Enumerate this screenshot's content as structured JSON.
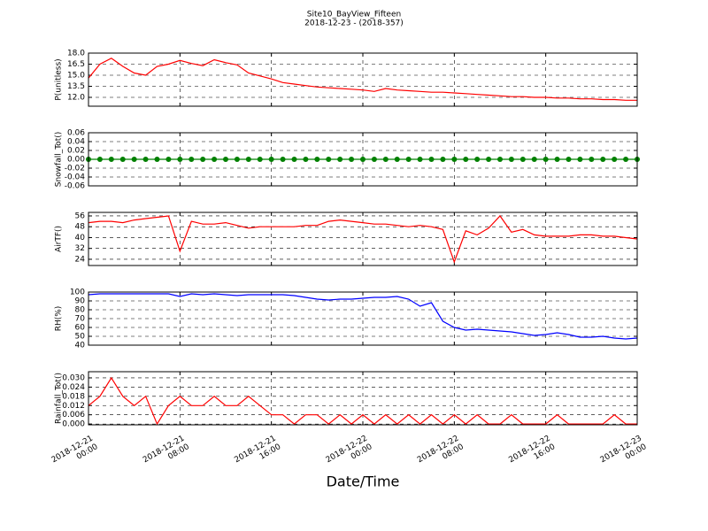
{
  "title": "Site10_BayView_Fifteen",
  "subtitle": "2018-12-23 - (2018-357)",
  "xlabel": "Date/Time",
  "chart_data": [
    {
      "type": "line",
      "ylabel": "P(unitless)",
      "ylim": [
        10.8,
        18
      ],
      "yticks": [
        {
          "value": 12,
          "label": "12.0"
        },
        13.5,
        {
          "value": 15,
          "label": "15.0"
        },
        16.5,
        {
          "value": 18,
          "label": "18.0"
        }
      ],
      "grid": true,
      "x": [
        "2018-12-21 00:00",
        "2018-12-21 01:00",
        "2018-12-21 02:00",
        "2018-12-21 03:00",
        "2018-12-21 04:00",
        "2018-12-21 05:00",
        "2018-12-21 06:00",
        "2018-12-21 07:00",
        "2018-12-21 08:00",
        "2018-12-21 09:00",
        "2018-12-21 10:00",
        "2018-12-21 11:00",
        "2018-12-21 12:00",
        "2018-12-21 13:00",
        "2018-12-21 14:00",
        "2018-12-21 15:00",
        "2018-12-21 16:00",
        "2018-12-21 17:00",
        "2018-12-21 18:00",
        "2018-12-21 19:00",
        "2018-12-21 20:00",
        "2018-12-21 21:00",
        "2018-12-21 22:00",
        "2018-12-21 23:00",
        "2018-12-22 00:00",
        "2018-12-22 01:00",
        "2018-12-22 02:00",
        "2018-12-22 03:00",
        "2018-12-22 04:00",
        "2018-12-22 05:00",
        "2018-12-22 06:00",
        "2018-12-22 07:00",
        "2018-12-22 08:00",
        "2018-12-22 09:00",
        "2018-12-22 10:00",
        "2018-12-22 11:00",
        "2018-12-22 12:00",
        "2018-12-22 13:00",
        "2018-12-22 14:00",
        "2018-12-22 15:00",
        "2018-12-22 16:00",
        "2018-12-22 17:00",
        "2018-12-22 18:00",
        "2018-12-22 19:00",
        "2018-12-22 20:00",
        "2018-12-22 21:00",
        "2018-12-22 22:00",
        "2018-12-22 23:00",
        "2018-12-23 00:00"
      ],
      "series": [
        {
          "color": "#ff0000",
          "values": [
            14.6,
            16.5,
            17.3,
            16.2,
            15.3,
            15.0,
            16.2,
            16.5,
            17.0,
            16.6,
            16.3,
            17.1,
            16.7,
            16.4,
            15.3,
            14.9,
            14.5,
            14.0,
            13.8,
            13.6,
            13.4,
            13.3,
            13.2,
            13.1,
            13.0,
            12.8,
            13.2,
            13.0,
            12.9,
            12.8,
            12.7,
            12.7,
            12.6,
            12.5,
            12.4,
            12.3,
            12.2,
            12.1,
            12.1,
            12.0,
            12.0,
            11.9,
            11.9,
            11.8,
            11.8,
            11.7,
            11.7,
            11.6,
            11.6
          ]
        }
      ]
    },
    {
      "type": "line",
      "ylabel": "Snowfall_Tot()",
      "ylim": [
        -0.06,
        0.06
      ],
      "yticks": [
        -0.06,
        -0.04,
        -0.02,
        {
          "value": 0,
          "label": "0.00"
        },
        0.02,
        0.04,
        0.06
      ],
      "grid": true,
      "marker": true,
      "x": [
        "2018-12-21 00:00",
        "2018-12-21 01:00",
        "2018-12-21 02:00",
        "2018-12-21 03:00",
        "2018-12-21 04:00",
        "2018-12-21 05:00",
        "2018-12-21 06:00",
        "2018-12-21 07:00",
        "2018-12-21 08:00",
        "2018-12-21 09:00",
        "2018-12-21 10:00",
        "2018-12-21 11:00",
        "2018-12-21 12:00",
        "2018-12-21 13:00",
        "2018-12-21 14:00",
        "2018-12-21 15:00",
        "2018-12-21 16:00",
        "2018-12-21 17:00",
        "2018-12-21 18:00",
        "2018-12-21 19:00",
        "2018-12-21 20:00",
        "2018-12-21 21:00",
        "2018-12-21 22:00",
        "2018-12-21 23:00",
        "2018-12-22 00:00",
        "2018-12-22 01:00",
        "2018-12-22 02:00",
        "2018-12-22 03:00",
        "2018-12-22 04:00",
        "2018-12-22 05:00",
        "2018-12-22 06:00",
        "2018-12-22 07:00",
        "2018-12-22 08:00",
        "2018-12-22 09:00",
        "2018-12-22 10:00",
        "2018-12-22 11:00",
        "2018-12-22 12:00",
        "2018-12-22 13:00",
        "2018-12-22 14:00",
        "2018-12-22 15:00",
        "2018-12-22 16:00",
        "2018-12-22 17:00",
        "2018-12-22 18:00",
        "2018-12-22 19:00",
        "2018-12-22 20:00",
        "2018-12-22 21:00",
        "2018-12-22 22:00",
        "2018-12-22 23:00",
        "2018-12-23 00:00"
      ],
      "series": [
        {
          "color": "#008000",
          "values": [
            0,
            0,
            0,
            0,
            0,
            0,
            0,
            0,
            0,
            0,
            0,
            0,
            0,
            0,
            0,
            0,
            0,
            0,
            0,
            0,
            0,
            0,
            0,
            0,
            0,
            0,
            0,
            0,
            0,
            0,
            0,
            0,
            0,
            0,
            0,
            0,
            0,
            0,
            0,
            0,
            0,
            0,
            0,
            0,
            0,
            0,
            0,
            0,
            0
          ]
        }
      ]
    },
    {
      "type": "line",
      "ylabel": "AirTF()",
      "ylim": [
        19.4,
        58.6
      ],
      "yticks": [
        24,
        32,
        40,
        48,
        56
      ],
      "grid": true,
      "x": [
        "2018-12-21 00:00",
        "2018-12-21 01:00",
        "2018-12-21 02:00",
        "2018-12-21 03:00",
        "2018-12-21 04:00",
        "2018-12-21 05:00",
        "2018-12-21 06:00",
        "2018-12-21 07:00",
        "2018-12-21 08:00",
        "2018-12-21 09:00",
        "2018-12-21 10:00",
        "2018-12-21 11:00",
        "2018-12-21 12:00",
        "2018-12-21 13:00",
        "2018-12-21 14:00",
        "2018-12-21 15:00",
        "2018-12-21 16:00",
        "2018-12-21 17:00",
        "2018-12-21 18:00",
        "2018-12-21 19:00",
        "2018-12-21 20:00",
        "2018-12-21 21:00",
        "2018-12-21 22:00",
        "2018-12-21 23:00",
        "2018-12-22 00:00",
        "2018-12-22 01:00",
        "2018-12-22 02:00",
        "2018-12-22 03:00",
        "2018-12-22 04:00",
        "2018-12-22 05:00",
        "2018-12-22 06:00",
        "2018-12-22 07:00",
        "2018-12-22 08:00",
        "2018-12-22 09:00",
        "2018-12-22 10:00",
        "2018-12-22 11:00",
        "2018-12-22 12:00",
        "2018-12-22 13:00",
        "2018-12-22 14:00",
        "2018-12-22 15:00",
        "2018-12-22 16:00",
        "2018-12-22 17:00",
        "2018-12-22 18:00",
        "2018-12-22 19:00",
        "2018-12-22 20:00",
        "2018-12-22 21:00",
        "2018-12-22 22:00",
        "2018-12-22 23:00",
        "2018-12-23 00:00"
      ],
      "series": [
        {
          "color": "#ff0000",
          "values": [
            51,
            52,
            52,
            51,
            53,
            54,
            55,
            56,
            30,
            52,
            50,
            50,
            51,
            49,
            47,
            48,
            48,
            48,
            48,
            49,
            49,
            52,
            53,
            52,
            51,
            50,
            50,
            49,
            48,
            49,
            48,
            46,
            22,
            45,
            42,
            47,
            56,
            44,
            46,
            42,
            41,
            41,
            41,
            42,
            42,
            41,
            41,
            40,
            39
          ]
        }
      ]
    },
    {
      "type": "line",
      "ylabel": "RH(%)",
      "ylim": [
        40,
        100
      ],
      "yticks": [
        40,
        50,
        60,
        70,
        80,
        90,
        100
      ],
      "grid": true,
      "x": [
        "2018-12-21 00:00",
        "2018-12-21 01:00",
        "2018-12-21 02:00",
        "2018-12-21 03:00",
        "2018-12-21 04:00",
        "2018-12-21 05:00",
        "2018-12-21 06:00",
        "2018-12-21 07:00",
        "2018-12-21 08:00",
        "2018-12-21 09:00",
        "2018-12-21 10:00",
        "2018-12-21 11:00",
        "2018-12-21 12:00",
        "2018-12-21 13:00",
        "2018-12-21 14:00",
        "2018-12-21 15:00",
        "2018-12-21 16:00",
        "2018-12-21 17:00",
        "2018-12-21 18:00",
        "2018-12-21 19:00",
        "2018-12-21 20:00",
        "2018-12-21 21:00",
        "2018-12-21 22:00",
        "2018-12-21 23:00",
        "2018-12-22 00:00",
        "2018-12-22 01:00",
        "2018-12-22 02:00",
        "2018-12-22 03:00",
        "2018-12-22 04:00",
        "2018-12-22 05:00",
        "2018-12-22 06:00",
        "2018-12-22 07:00",
        "2018-12-22 08:00",
        "2018-12-22 09:00",
        "2018-12-22 10:00",
        "2018-12-22 11:00",
        "2018-12-22 12:00",
        "2018-12-22 13:00",
        "2018-12-22 14:00",
        "2018-12-22 15:00",
        "2018-12-22 16:00",
        "2018-12-22 17:00",
        "2018-12-22 18:00",
        "2018-12-22 19:00",
        "2018-12-22 20:00",
        "2018-12-22 21:00",
        "2018-12-22 22:00",
        "2018-12-22 23:00",
        "2018-12-23 00:00"
      ],
      "series": [
        {
          "color": "#0000ff",
          "values": [
            97,
            98,
            98,
            98,
            98,
            98,
            98,
            98,
            95,
            98,
            97,
            98,
            97,
            96,
            97,
            97,
            97,
            97,
            96,
            94,
            92,
            91,
            92,
            92,
            93,
            94,
            94,
            95,
            92,
            84,
            88,
            67,
            60,
            57,
            58,
            57,
            56,
            55,
            53,
            51,
            52,
            54,
            52,
            49,
            49,
            50,
            48,
            47,
            48
          ]
        }
      ]
    },
    {
      "type": "line",
      "ylabel": "Rainfall_Tot()",
      "ylim": [
        -0.0005,
        0.034
      ],
      "yticks": [
        {
          "value": 0,
          "label": "0.000"
        },
        {
          "value": 0.006,
          "label": "0.006"
        },
        {
          "value": 0.012,
          "label": "0.012"
        },
        {
          "value": 0.018,
          "label": "0.018"
        },
        {
          "value": 0.024,
          "label": "0.024"
        },
        {
          "value": 0.03,
          "label": "0.030"
        }
      ],
      "grid": true,
      "x": [
        "2018-12-21 00:00",
        "2018-12-21 01:00",
        "2018-12-21 02:00",
        "2018-12-21 03:00",
        "2018-12-21 04:00",
        "2018-12-21 05:00",
        "2018-12-21 06:00",
        "2018-12-21 07:00",
        "2018-12-21 08:00",
        "2018-12-21 09:00",
        "2018-12-21 10:00",
        "2018-12-21 11:00",
        "2018-12-21 12:00",
        "2018-12-21 13:00",
        "2018-12-21 14:00",
        "2018-12-21 15:00",
        "2018-12-21 16:00",
        "2018-12-21 17:00",
        "2018-12-21 18:00",
        "2018-12-21 19:00",
        "2018-12-21 20:00",
        "2018-12-21 21:00",
        "2018-12-21 22:00",
        "2018-12-21 23:00",
        "2018-12-22 00:00",
        "2018-12-22 01:00",
        "2018-12-22 02:00",
        "2018-12-22 03:00",
        "2018-12-22 04:00",
        "2018-12-22 05:00",
        "2018-12-22 06:00",
        "2018-12-22 07:00",
        "2018-12-22 08:00",
        "2018-12-22 09:00",
        "2018-12-22 10:00",
        "2018-12-22 11:00",
        "2018-12-22 12:00",
        "2018-12-22 13:00",
        "2018-12-22 14:00",
        "2018-12-22 15:00",
        "2018-12-22 16:00",
        "2018-12-22 17:00",
        "2018-12-22 18:00",
        "2018-12-22 19:00",
        "2018-12-22 20:00",
        "2018-12-22 21:00",
        "2018-12-22 22:00",
        "2018-12-22 23:00",
        "2018-12-23 00:00"
      ],
      "series": [
        {
          "color": "#ff0000",
          "values": [
            0.012,
            0.018,
            0.03,
            0.018,
            0.012,
            0.018,
            0,
            0.012,
            0.018,
            0.012,
            0.012,
            0.018,
            0.012,
            0.012,
            0.018,
            0.012,
            0.006,
            0.006,
            0,
            0.006,
            0.006,
            0,
            0.006,
            0,
            0.006,
            0,
            0.006,
            0,
            0.006,
            0,
            0.006,
            0,
            0.006,
            0,
            0.006,
            0,
            0,
            0.006,
            0,
            0,
            0,
            0.006,
            0,
            0,
            0,
            0,
            0.006,
            0,
            0
          ]
        }
      ],
      "xticks": [
        {
          "value": "2018-12-21 00:00",
          "label": [
            "2018-12-21",
            "00:00"
          ]
        },
        {
          "value": "2018-12-21 08:00",
          "label": [
            "2018-12-21",
            "08:00"
          ]
        },
        {
          "value": "2018-12-21 16:00",
          "label": [
            "2018-12-21",
            "16:00"
          ]
        },
        {
          "value": "2018-12-22 00:00",
          "label": [
            "2018-12-22",
            "00:00"
          ]
        },
        {
          "value": "2018-12-22 08:00",
          "label": [
            "2018-12-22",
            "08:00"
          ]
        },
        {
          "value": "2018-12-22 16:00",
          "label": [
            "2018-12-22",
            "16:00"
          ]
        },
        {
          "value": "2018-12-23 00:00",
          "label": [
            "2018-12-23",
            "00:00"
          ]
        }
      ]
    }
  ]
}
